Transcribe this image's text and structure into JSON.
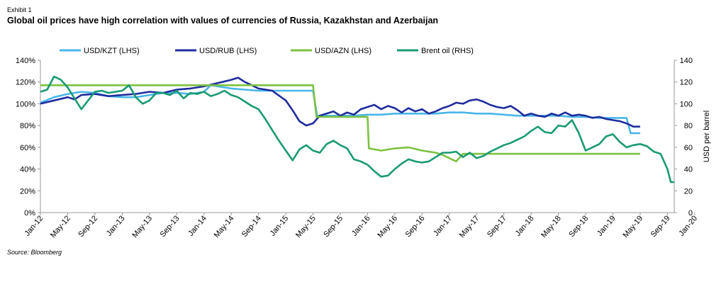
{
  "header": {
    "exhibit": "Exhibit 1",
    "title": "Global oil prices have high correlation with values of currencies of Russia, Kazakhstan and Azerbaijan"
  },
  "footer": {
    "source": "Source: Bloomberg"
  },
  "chart_data": {
    "type": "line",
    "title": "Global oil prices have high correlation with values of currencies of Russia, Kazakhstan and Azerbaijan",
    "xlabel": "",
    "ylabel": "",
    "y2label": "USD per barrel",
    "x_ticks": [
      "Jan-12",
      "May-12",
      "Sep-12",
      "Jan-13",
      "May-13",
      "Sep-13",
      "Jan-14",
      "May-14",
      "Sep-14",
      "Jan-15",
      "May-15",
      "Sep-15",
      "Jan-16",
      "May-16",
      "Sep-16",
      "Jan-17",
      "May-17",
      "Sep-17",
      "Jan-18",
      "May-18",
      "Sep-18",
      "Jan-19",
      "May-19",
      "Sep-19",
      "Jan-20"
    ],
    "y_ticks": [
      "0%",
      "20%",
      "40%",
      "60%",
      "80%",
      "100%",
      "120%",
      "140%"
    ],
    "y2_ticks": [
      "0",
      "20",
      "40",
      "60",
      "80",
      "100",
      "120",
      "140"
    ],
    "ylim": [
      0,
      140
    ],
    "y2lim": [
      0,
      140
    ],
    "grid": false,
    "legend_position": "top",
    "series": [
      {
        "name": "USD/KZT (LHS)",
        "color": "#4ab6e8",
        "axis": "left",
        "values": [
          [
            0,
            101
          ],
          [
            2,
            106
          ],
          [
            4,
            109
          ],
          [
            6,
            111
          ],
          [
            8,
            110
          ],
          [
            10,
            107
          ],
          [
            12,
            106
          ],
          [
            14,
            106
          ],
          [
            16,
            108
          ],
          [
            18,
            110
          ],
          [
            20,
            110
          ],
          [
            22,
            109
          ],
          [
            24,
            111
          ],
          [
            25,
            117
          ],
          [
            26,
            116
          ],
          [
            28,
            114
          ],
          [
            30,
            113
          ],
          [
            32,
            112
          ],
          [
            34,
            112
          ],
          [
            36,
            112
          ],
          [
            38,
            112
          ],
          [
            40,
            112
          ],
          [
            40.6,
            89
          ],
          [
            42,
            89
          ],
          [
            44,
            89
          ],
          [
            46,
            89
          ],
          [
            48,
            90
          ],
          [
            50,
            90
          ],
          [
            52,
            91
          ],
          [
            54,
            91
          ],
          [
            56,
            91
          ],
          [
            58,
            91
          ],
          [
            60,
            92
          ],
          [
            62,
            92
          ],
          [
            64,
            91
          ],
          [
            66,
            91
          ],
          [
            68,
            90
          ],
          [
            70,
            89
          ],
          [
            72,
            89
          ],
          [
            74,
            89
          ],
          [
            76,
            89
          ],
          [
            78,
            88
          ],
          [
            80,
            88
          ],
          [
            82,
            87
          ],
          [
            84,
            87
          ],
          [
            86,
            87
          ],
          [
            86.6,
            73
          ],
          [
            88,
            73
          ]
        ]
      },
      {
        "name": "USD/RUB (LHS)",
        "color": "#1f2d9c",
        "axis": "left",
        "values": [
          [
            0,
            100
          ],
          [
            2,
            103
          ],
          [
            4,
            106
          ],
          [
            5,
            104
          ],
          [
            6,
            108
          ],
          [
            8,
            109
          ],
          [
            10,
            107
          ],
          [
            12,
            108
          ],
          [
            14,
            109
          ],
          [
            16,
            111
          ],
          [
            18,
            110
          ],
          [
            20,
            113
          ],
          [
            22,
            114
          ],
          [
            24,
            116
          ],
          [
            26,
            119
          ],
          [
            28,
            122
          ],
          [
            29,
            124
          ],
          [
            30,
            120
          ],
          [
            32,
            114
          ],
          [
            34,
            112
          ],
          [
            36,
            103
          ],
          [
            37,
            94
          ],
          [
            38,
            84
          ],
          [
            39,
            80
          ],
          [
            40,
            82
          ],
          [
            41,
            89
          ],
          [
            42,
            91
          ],
          [
            43,
            93
          ],
          [
            44,
            89
          ],
          [
            45,
            92
          ],
          [
            46,
            90
          ],
          [
            47,
            95
          ],
          [
            48,
            97
          ],
          [
            49,
            99
          ],
          [
            50,
            95
          ],
          [
            51,
            98
          ],
          [
            52,
            96
          ],
          [
            53,
            92
          ],
          [
            54,
            96
          ],
          [
            55,
            93
          ],
          [
            56,
            95
          ],
          [
            57,
            91
          ],
          [
            58,
            93
          ],
          [
            59,
            96
          ],
          [
            60,
            98
          ],
          [
            61,
            101
          ],
          [
            62,
            100
          ],
          [
            63,
            103
          ],
          [
            64,
            104
          ],
          [
            65,
            102
          ],
          [
            66,
            99
          ],
          [
            67,
            97
          ],
          [
            68,
            96
          ],
          [
            69,
            98
          ],
          [
            70,
            94
          ],
          [
            71,
            89
          ],
          [
            72,
            91
          ],
          [
            73,
            89
          ],
          [
            74,
            88
          ],
          [
            75,
            91
          ],
          [
            76,
            89
          ],
          [
            77,
            92
          ],
          [
            78,
            89
          ],
          [
            79,
            90
          ],
          [
            80,
            89
          ],
          [
            81,
            87
          ],
          [
            82,
            88
          ],
          [
            83,
            86
          ],
          [
            84,
            85
          ],
          [
            85,
            84
          ],
          [
            86,
            82
          ],
          [
            87,
            79
          ],
          [
            88,
            79
          ]
        ]
      },
      {
        "name": "USD/AZN (LHS)",
        "color": "#7cc242",
        "axis": "left",
        "values": [
          [
            0,
            117
          ],
          [
            40,
            117
          ],
          [
            40.5,
            88
          ],
          [
            48,
            88
          ],
          [
            48.2,
            59
          ],
          [
            50,
            57
          ],
          [
            52,
            59
          ],
          [
            54,
            60
          ],
          [
            56,
            57
          ],
          [
            58,
            55
          ],
          [
            59,
            53
          ],
          [
            60,
            50
          ],
          [
            61,
            47
          ],
          [
            62,
            54
          ],
          [
            64,
            54
          ],
          [
            66,
            54
          ],
          [
            70,
            54
          ],
          [
            75,
            54
          ],
          [
            80,
            54
          ],
          [
            88,
            54
          ]
        ]
      },
      {
        "name": "Brent oil (RHS)",
        "color": "#1a9a73",
        "axis": "right",
        "values": [
          [
            0,
            111
          ],
          [
            1,
            113
          ],
          [
            2,
            125
          ],
          [
            3,
            122
          ],
          [
            4,
            115
          ],
          [
            5,
            105
          ],
          [
            6,
            95
          ],
          [
            7,
            103
          ],
          [
            8,
            111
          ],
          [
            9,
            112
          ],
          [
            10,
            110
          ],
          [
            11,
            111
          ],
          [
            12,
            112
          ],
          [
            13,
            117
          ],
          [
            14,
            106
          ],
          [
            15,
            100
          ],
          [
            16,
            103
          ],
          [
            17,
            110
          ],
          [
            18,
            110
          ],
          [
            19,
            108
          ],
          [
            20,
            112
          ],
          [
            21,
            105
          ],
          [
            22,
            110
          ],
          [
            23,
            109
          ],
          [
            24,
            111
          ],
          [
            25,
            107
          ],
          [
            26,
            109
          ],
          [
            27,
            112
          ],
          [
            28,
            108
          ],
          [
            29,
            106
          ],
          [
            30,
            102
          ],
          [
            31,
            98
          ],
          [
            32,
            95
          ],
          [
            33,
            86
          ],
          [
            34,
            76
          ],
          [
            35,
            66
          ],
          [
            36,
            57
          ],
          [
            37,
            48
          ],
          [
            38,
            58
          ],
          [
            39,
            62
          ],
          [
            40,
            57
          ],
          [
            41,
            55
          ],
          [
            42,
            63
          ],
          [
            43,
            66
          ],
          [
            44,
            62
          ],
          [
            45,
            59
          ],
          [
            46,
            49
          ],
          [
            47,
            47
          ],
          [
            48,
            44
          ],
          [
            49,
            38
          ],
          [
            50,
            33
          ],
          [
            51,
            34
          ],
          [
            52,
            40
          ],
          [
            53,
            45
          ],
          [
            54,
            49
          ],
          [
            55,
            47
          ],
          [
            56,
            46
          ],
          [
            57,
            47
          ],
          [
            58,
            51
          ],
          [
            59,
            55
          ],
          [
            60,
            55
          ],
          [
            61,
            56
          ],
          [
            62,
            51
          ],
          [
            63,
            55
          ],
          [
            64,
            50
          ],
          [
            65,
            52
          ],
          [
            66,
            56
          ],
          [
            67,
            59
          ],
          [
            68,
            62
          ],
          [
            69,
            64
          ],
          [
            70,
            67
          ],
          [
            71,
            70
          ],
          [
            72,
            75
          ],
          [
            73,
            79
          ],
          [
            74,
            74
          ],
          [
            75,
            73
          ],
          [
            76,
            80
          ],
          [
            77,
            79
          ],
          [
            78,
            85
          ],
          [
            79,
            73
          ],
          [
            80,
            57
          ],
          [
            81,
            60
          ],
          [
            82,
            63
          ],
          [
            83,
            70
          ],
          [
            84,
            72
          ],
          [
            85,
            65
          ],
          [
            86,
            60
          ],
          [
            87,
            62
          ],
          [
            88,
            63
          ],
          [
            89,
            61
          ],
          [
            90,
            56
          ],
          [
            91,
            54
          ],
          [
            92,
            40
          ],
          [
            92.5,
            28
          ],
          [
            93,
            28
          ]
        ]
      }
    ]
  }
}
